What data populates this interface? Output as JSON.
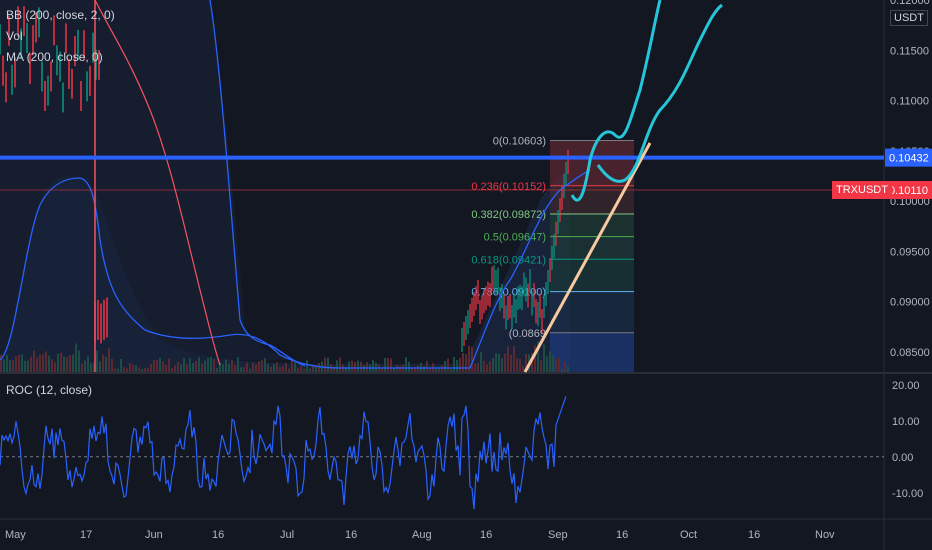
{
  "symbol_badge": "TRXUSDT",
  "price_unit": "USDT",
  "indicators": {
    "bb": "BB (200, close, 2, 0)",
    "vol": "Vol",
    "ma": "MA (200, close, 0)",
    "roc": "ROC (12, close)"
  },
  "colors": {
    "background": "#131722",
    "bb_line": "#2962ff",
    "ma_line": "#f7525f",
    "horizontal_line": "#2962ff",
    "current_price": "#f23645",
    "trendline": "#f7c9a0",
    "projection": "#26c6da",
    "roc_line": "#2962ff"
  },
  "chart_data": [
    {
      "type": "line",
      "title": "",
      "y_ticks": [
        "0.12000",
        "0.11500",
        "0.11000",
        "0.10500",
        "0.10000",
        "0.09500",
        "0.09000",
        "0.08500"
      ],
      "x_ticks": [
        "May",
        "17",
        "Jun",
        "16",
        "Jul",
        "16",
        "Aug",
        "16",
        "Sep",
        "16",
        "Oct",
        "16",
        "Nov"
      ],
      "ylim": [
        0.083,
        0.12
      ],
      "horizontal_line": 0.10432,
      "current_price": 0.1011,
      "current_price_label": "0.10110",
      "horizontal_line_label": "0.10432",
      "fibonacci": [
        {
          "label": "0(0.10603)",
          "value": 0.10603
        },
        {
          "label": "0.236(0.10152)",
          "value": 0.10152
        },
        {
          "label": "0.382(0.09872)",
          "value": 0.09872
        },
        {
          "label": "0.5(0.09647)",
          "value": 0.09647
        },
        {
          "label": "0.618(0.09421)",
          "value": 0.09421
        },
        {
          "label": "0.786(0.09100)",
          "value": 0.091
        },
        {
          "label": "(0.0869",
          "value": 0.0869
        }
      ],
      "series": [
        {
          "name": "BB (200, close, 2, 0)"
        },
        {
          "name": "MA (200, close, 0)"
        }
      ]
    },
    {
      "type": "line",
      "title": "ROC (12, close)",
      "y_ticks": [
        "20.00",
        "10.00",
        "0.00",
        "-10.00"
      ],
      "ylim": [
        -17,
        23
      ],
      "zero_line": 0
    }
  ]
}
